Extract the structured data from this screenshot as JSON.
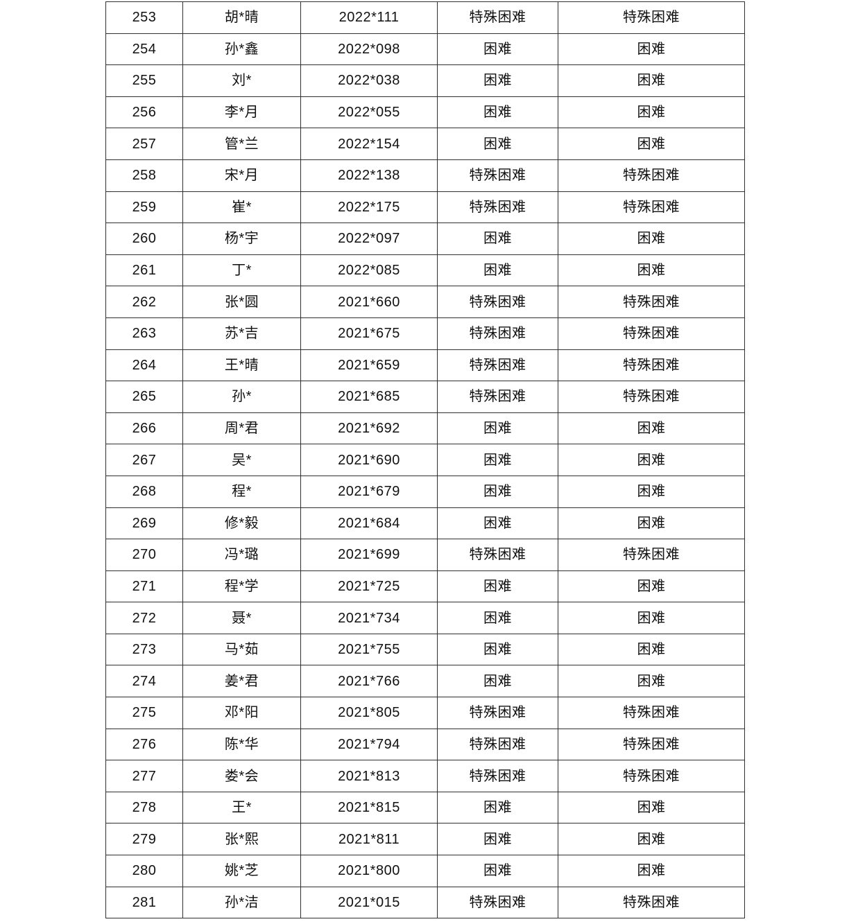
{
  "page": {
    "background_color": "#ffffff",
    "table_border_color": "#2f2f2f",
    "text_color": "#111111"
  },
  "table": {
    "visible_row_range": {
      "first": "253",
      "last": "281"
    },
    "status_values_seen": [
      "特殊困难",
      "困难"
    ],
    "rows": [
      [
        "253",
        "胡*晴",
        "2022*111",
        "特殊困难",
        "特殊困难"
      ],
      [
        "254",
        "孙*鑫",
        "2022*098",
        "困难",
        "困难"
      ],
      [
        "255",
        "刘*",
        "2022*038",
        "困难",
        "困难"
      ],
      [
        "256",
        "李*月",
        "2022*055",
        "困难",
        "困难"
      ],
      [
        "257",
        "管*兰",
        "2022*154",
        "困难",
        "困难"
      ],
      [
        "258",
        "宋*月",
        "2022*138",
        "特殊困难",
        "特殊困难"
      ],
      [
        "259",
        "崔*",
        "2022*175",
        "特殊困难",
        "特殊困难"
      ],
      [
        "260",
        "杨*宇",
        "2022*097",
        "困难",
        "困难"
      ],
      [
        "261",
        "丁*",
        "2022*085",
        "困难",
        "困难"
      ],
      [
        "262",
        "张*圆",
        "2021*660",
        "特殊困难",
        "特殊困难"
      ],
      [
        "263",
        "苏*吉",
        "2021*675",
        "特殊困难",
        "特殊困难"
      ],
      [
        "264",
        "王*晴",
        "2021*659",
        "特殊困难",
        "特殊困难"
      ],
      [
        "265",
        "孙*",
        "2021*685",
        "特殊困难",
        "特殊困难"
      ],
      [
        "266",
        "周*君",
        "2021*692",
        "困难",
        "困难"
      ],
      [
        "267",
        "吴*",
        "2021*690",
        "困难",
        "困难"
      ],
      [
        "268",
        "程*",
        "2021*679",
        "困难",
        "困难"
      ],
      [
        "269",
        "修*毅",
        "2021*684",
        "困难",
        "困难"
      ],
      [
        "270",
        "冯*璐",
        "2021*699",
        "特殊困难",
        "特殊困难"
      ],
      [
        "271",
        "程*学",
        "2021*725",
        "困难",
        "困难"
      ],
      [
        "272",
        "聂*",
        "2021*734",
        "困难",
        "困难"
      ],
      [
        "273",
        "马*茹",
        "2021*755",
        "困难",
        "困难"
      ],
      [
        "274",
        "姜*君",
        "2021*766",
        "困难",
        "困难"
      ],
      [
        "275",
        "邓*阳",
        "2021*805",
        "特殊困难",
        "特殊困难"
      ],
      [
        "276",
        "陈*华",
        "2021*794",
        "特殊困难",
        "特殊困难"
      ],
      [
        "277",
        "娄*会",
        "2021*813",
        "特殊困难",
        "特殊困难"
      ],
      [
        "278",
        "王*",
        "2021*815",
        "困难",
        "困难"
      ],
      [
        "279",
        "张*熙",
        "2021*811",
        "困难",
        "困难"
      ],
      [
        "280",
        "姚*芝",
        "2021*800",
        "困难",
        "困难"
      ],
      [
        "281",
        "孙*洁",
        "2021*015",
        "特殊困难",
        "特殊困难"
      ]
    ]
  }
}
